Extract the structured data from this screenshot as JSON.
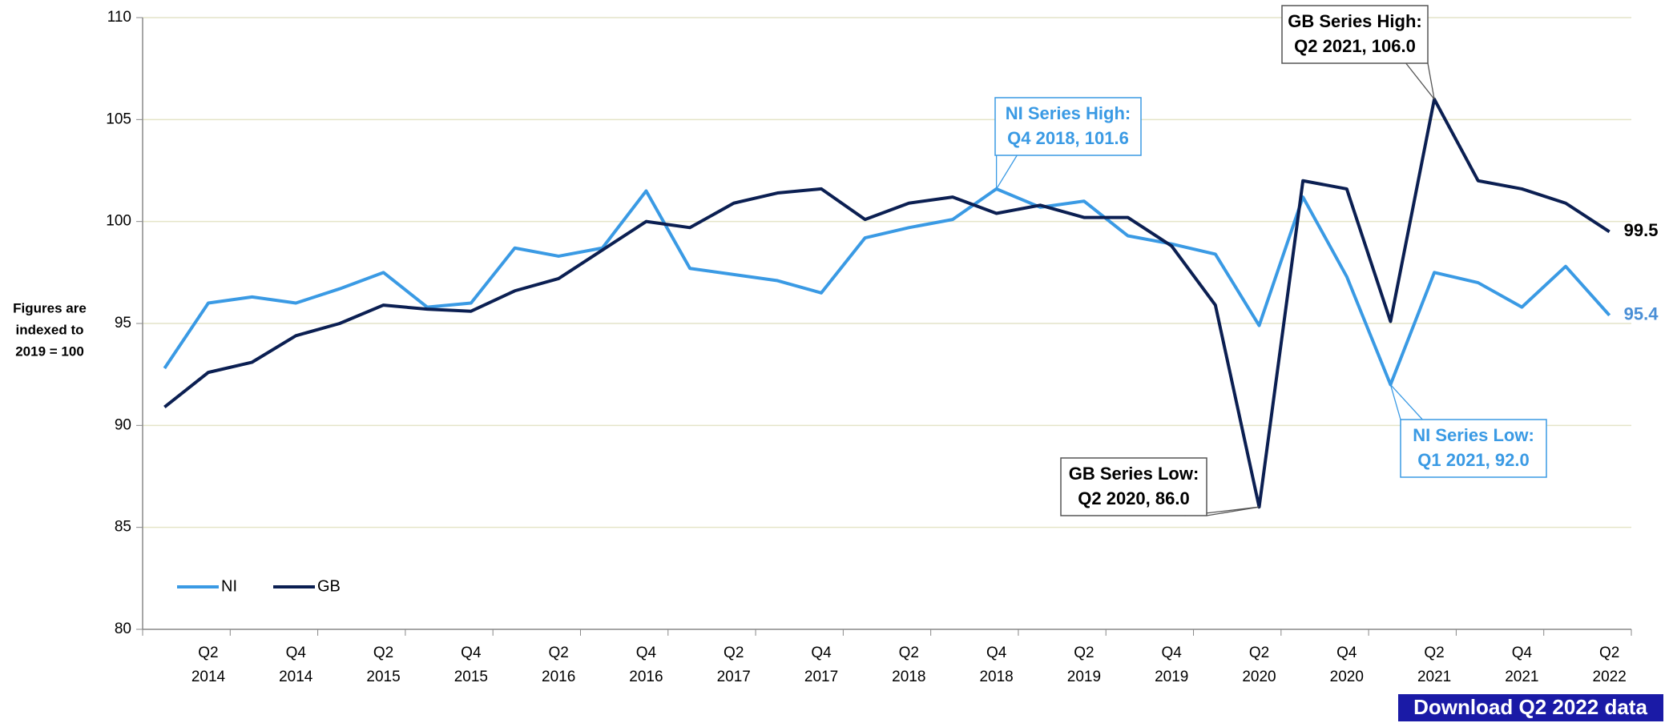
{
  "chart_data": {
    "type": "line",
    "y_label": [
      "Figures are",
      "indexed to",
      "2019 = 100"
    ],
    "categories": [
      null,
      "Q2 2014",
      null,
      "Q4 2014",
      null,
      "Q2 2015",
      null,
      "Q4 2015",
      null,
      "Q2 2016",
      null,
      "Q4 2016",
      null,
      "Q2 2017",
      null,
      "Q4 2017",
      null,
      "Q2 2018",
      null,
      "Q4 2018",
      null,
      "Q2 2019",
      null,
      "Q4 2019",
      null,
      "Q2 2020",
      null,
      "Q4 2020",
      null,
      "Q2 2021",
      null,
      "Q4 2021",
      null,
      "Q2 2022"
    ],
    "series": [
      {
        "name": "NI",
        "color": "#3a9ae4",
        "values": [
          92.8,
          96.0,
          96.3,
          96.0,
          96.7,
          97.5,
          95.8,
          96.0,
          98.7,
          98.3,
          98.7,
          101.5,
          97.7,
          97.4,
          97.1,
          96.5,
          99.2,
          99.7,
          100.1,
          101.6,
          100.7,
          101.0,
          99.3,
          98.9,
          98.4,
          94.9,
          101.2,
          97.3,
          92.0,
          97.5,
          97.0,
          95.8,
          97.8,
          95.4
        ]
      },
      {
        "name": "GB",
        "color": "#0b1f52",
        "values": [
          90.9,
          92.6,
          93.1,
          94.4,
          95.0,
          95.9,
          95.7,
          95.6,
          96.6,
          97.2,
          98.6,
          100.0,
          99.7,
          100.9,
          101.4,
          101.6,
          100.1,
          100.9,
          101.2,
          100.4,
          100.8,
          100.2,
          100.2,
          98.8,
          95.9,
          86.0,
          102.0,
          101.6,
          95.1,
          106.0,
          102.0,
          101.6,
          100.9,
          99.5
        ]
      }
    ],
    "annotations": [
      {
        "series": 0,
        "index": 19,
        "text": [
          "NI Series High:",
          "Q4 2018, 101.6"
        ]
      },
      {
        "series": 1,
        "index": 29,
        "text": [
          "GB Series High:",
          "Q2 2021, 106.0"
        ]
      },
      {
        "series": 1,
        "index": 25,
        "text": [
          "GB Series Low:",
          "Q2 2020, 86.0"
        ]
      },
      {
        "series": 0,
        "index": 28,
        "text": [
          "NI Series Low:",
          "Q1 2021, 92.0"
        ]
      }
    ],
    "ylim": [
      80,
      110
    ],
    "yticks": [
      80,
      85,
      90,
      95,
      100,
      105,
      110
    ],
    "grid": true,
    "legend": "lower left",
    "download": "Download Q2 2022 data"
  }
}
